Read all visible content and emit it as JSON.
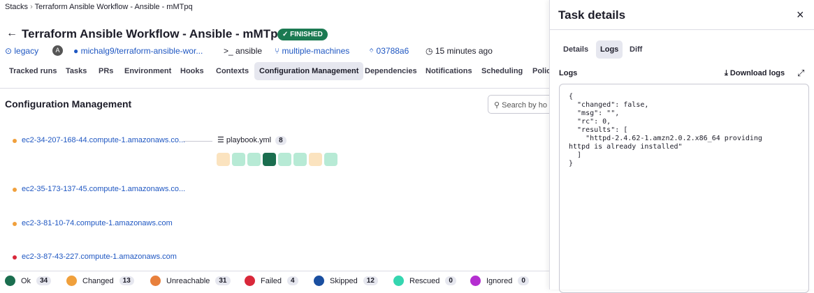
{
  "breadcrumb": [
    "Stacks",
    "Terraform Ansible Workflow - Ansible - mMTpq"
  ],
  "header": {
    "title": "Terraform Ansible Workflow - Ansible - mMTpq",
    "status": "FINISHED",
    "meta": {
      "space": "legacy",
      "avatar": "A",
      "repo": "michalg9/terraform-ansible-wor...",
      "vendor": "ansible",
      "branch": "multiple-machines",
      "commit": "03788a6",
      "time": "15 minutes ago"
    }
  },
  "tabs": {
    "items": [
      "Tracked runs",
      "Tasks",
      "PRs",
      "Environment",
      "Hooks",
      "Contexts",
      "Configuration Management",
      "Dependencies",
      "Notifications",
      "Scheduling",
      "Polic"
    ],
    "active": 6
  },
  "section": {
    "title": "Configuration Management",
    "search_placeholder": "Search by ho"
  },
  "hosts": [
    {
      "name": "ec2-34-207-168-44.compute-1.amazonaws.co...",
      "color": "#f0a03c",
      "playbook": {
        "name": "playbook.yml",
        "count": "8",
        "task_colors": [
          "#fbe3bf",
          "#b7ead5",
          "#b7ead5",
          "#1b6e4f",
          "#b7ead5",
          "#b7ead5",
          "#fbe3bf",
          "#b7ead5"
        ]
      }
    },
    {
      "name": "ec2-35-173-137-45.compute-1.amazonaws.co...",
      "color": "#f0a03c"
    },
    {
      "name": "ec2-3-81-10-74.compute-1.amazonaws.com",
      "color": "#f0a03c"
    },
    {
      "name": "ec2-3-87-43-227.compute-1.amazonaws.com",
      "color": "#d9283a"
    }
  ],
  "legend": [
    {
      "label": "Ok",
      "count": "34",
      "color": "#1b6e4f"
    },
    {
      "label": "Changed",
      "count": "13",
      "color": "#f0a03c"
    },
    {
      "label": "Unreachable",
      "count": "31",
      "color": "#e8803c"
    },
    {
      "label": "Failed",
      "count": "4",
      "color": "#d9283a"
    },
    {
      "label": "Skipped",
      "count": "12",
      "color": "#1a4fa0"
    },
    {
      "label": "Rescued",
      "count": "0",
      "color": "#35d6b0"
    },
    {
      "label": "Ignored",
      "count": "0",
      "color": "#b42ed0"
    }
  ],
  "panel": {
    "title": "Task details",
    "tabs": [
      "Details",
      "Logs",
      "Diff"
    ],
    "active_tab": 1,
    "logs_label": "Logs",
    "download": "Download logs",
    "log_lines": [
      "{",
      "  \"changed\": false,",
      "  \"msg\": \"\",",
      "  \"rc\": 0,",
      "  \"results\": [",
      "    \"httpd-2.4.62-1.amzn2.0.2.x86_64 providing",
      "httpd is already installed\"",
      "  ]",
      "}"
    ]
  }
}
